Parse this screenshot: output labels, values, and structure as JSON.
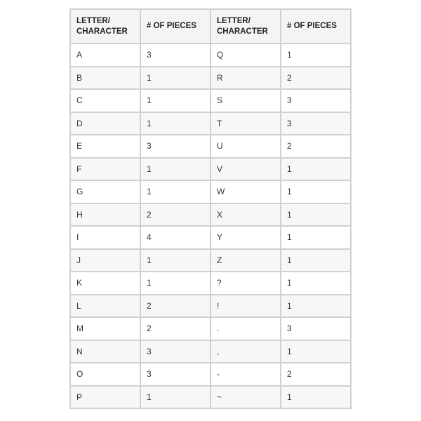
{
  "headers": [
    "LETTER/ CHARACTER",
    "# OF PIECES",
    "LETTER/ CHARACTER",
    "# OF PIECES"
  ],
  "rows": [
    [
      "A",
      "3",
      "Q",
      "1"
    ],
    [
      "B",
      "1",
      "R",
      "2"
    ],
    [
      "C",
      "1",
      "S",
      "3"
    ],
    [
      "D",
      "1",
      "T",
      "3"
    ],
    [
      "E",
      "3",
      "U",
      "2"
    ],
    [
      "F",
      "1",
      "V",
      "1"
    ],
    [
      "G",
      "1",
      "W",
      "1"
    ],
    [
      "H",
      "2",
      "X",
      "1"
    ],
    [
      "I",
      "4",
      "Y",
      "1"
    ],
    [
      "J",
      "1",
      "Z",
      "1"
    ],
    [
      "K",
      "1",
      "?",
      "1"
    ],
    [
      "L",
      "2",
      "!",
      "1"
    ],
    [
      "M",
      "2",
      ".",
      "3"
    ],
    [
      "N",
      "3",
      ",",
      "1"
    ],
    [
      "O",
      "3",
      "-",
      "2"
    ],
    [
      "P",
      "1",
      "~",
      "1"
    ]
  ]
}
